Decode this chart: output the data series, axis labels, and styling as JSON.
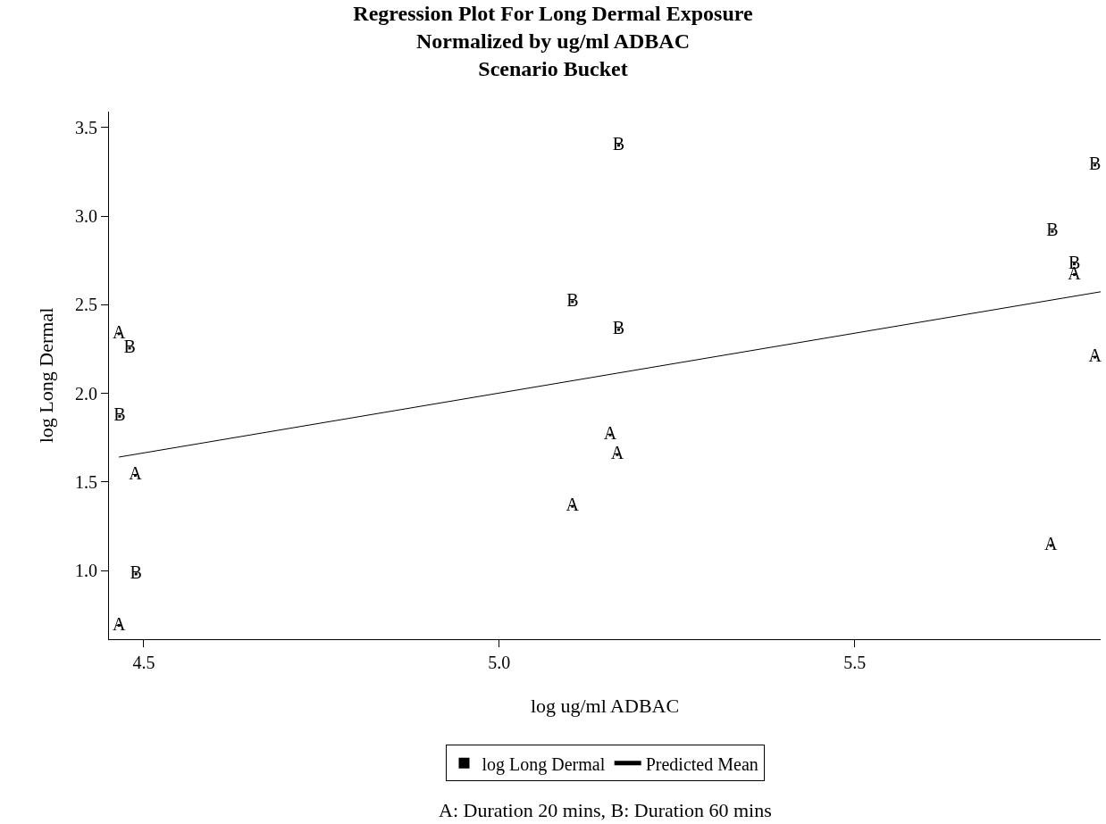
{
  "chart_data": {
    "type": "scatter",
    "title": "Regression Plot For Long Dermal Exposure\nNormalized by ug/ml ADBAC\nScenario Bucket",
    "xlabel": "log ug/ml ADBAC",
    "ylabel": "log Long Dermal",
    "xlim": [
      4.451,
      5.846
    ],
    "xticks": [
      {
        "value": 4.5,
        "label": "4.5"
      },
      {
        "value": 5.0,
        "label": "5.0"
      },
      {
        "value": 5.5,
        "label": "5.5"
      }
    ],
    "ylim": [
      0.612,
      3.59
    ],
    "yticks": [
      {
        "value": 1.0,
        "label": "1.0"
      },
      {
        "value": 1.5,
        "label": "1.5"
      },
      {
        "value": 2.0,
        "label": "2.0"
      },
      {
        "value": 2.5,
        "label": "2.5"
      },
      {
        "value": 3.0,
        "label": "3.0"
      },
      {
        "value": 3.5,
        "label": "3.5"
      }
    ],
    "x": [
      4.465,
      4.48,
      4.466,
      4.488,
      4.489,
      4.465,
      5.103,
      5.168,
      5.168,
      5.156,
      5.166,
      5.103,
      5.778,
      5.809,
      5.809,
      5.838,
      5.838,
      5.776
    ],
    "series": [
      {
        "name": "log Long Dermal",
        "color": "#000000",
        "marker": "square",
        "values": [
          2.336,
          2.255,
          1.87,
          1.537,
          0.98,
          0.69,
          2.517,
          3.4,
          2.36,
          1.765,
          1.654,
          1.362,
          2.914,
          2.73,
          2.67,
          3.288,
          2.204,
          1.141
        ],
        "value_labels": [
          "A",
          "B",
          "B",
          "A",
          "B",
          "A",
          "B",
          "B",
          "B",
          "A",
          "A",
          "A",
          "B",
          "B",
          "A",
          "B",
          "A",
          "A"
        ]
      },
      {
        "name": "Predicted Mean",
        "type": "line",
        "color": "#000000",
        "line_style": "solid",
        "x": [
          4.465,
          5.846
        ],
        "values": [
          1.64,
          2.573
        ]
      }
    ],
    "grid": false,
    "legend": "bottom",
    "annotations": [
      "A: Duration 20 mins, B: Duration 60 mins"
    ]
  }
}
